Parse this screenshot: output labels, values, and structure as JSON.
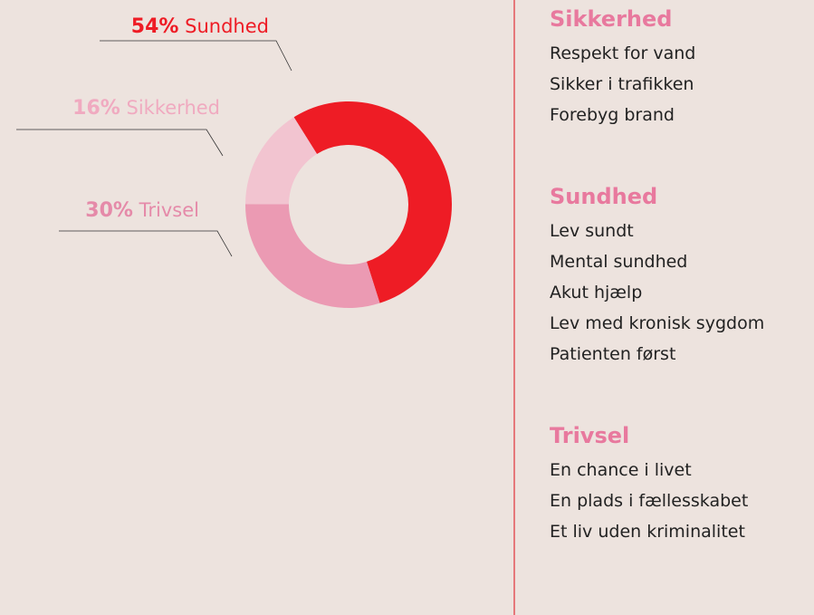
{
  "chart_data": {
    "type": "donut",
    "categories": [
      "Sundhed",
      "Trivsel",
      "Sikkerhed"
    ],
    "values": [
      54,
      30,
      16
    ],
    "value_labels": [
      "54%",
      "30%",
      "16%"
    ],
    "colors": [
      "#ee1c25",
      "#eb9ab3",
      "#f2c4d0"
    ],
    "label_colors": [
      "#ee1c25",
      "#e58aa9",
      "#f0aac0"
    ]
  },
  "sidebar": [
    {
      "heading": "Sikkerhed",
      "items": [
        "Respekt for vand",
        "Sikker i trafikken",
        "Forebyg brand"
      ]
    },
    {
      "heading": "Sundhed",
      "items": [
        "Lev sundt",
        "Mental sundhed",
        "Akut hjælp",
        "Lev med kronisk sygdom",
        "Patienten først"
      ]
    },
    {
      "heading": "Trivsel",
      "items": [
        "En chance i livet",
        "En plads i fællesskabet",
        "Et liv uden kriminalitet"
      ]
    }
  ]
}
